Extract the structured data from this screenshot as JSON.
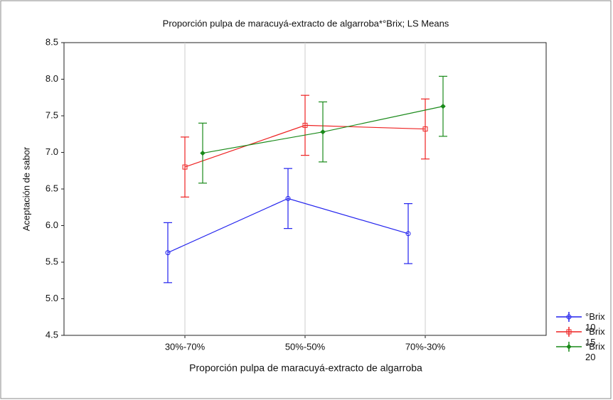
{
  "chart_data": {
    "type": "line",
    "title": "Proporción pulpa de maracuyá-extracto de algarroba*°Brix; LS Means",
    "x_label": "Proporción pulpa de maracuyá-extracto de algarroba",
    "y_label": "Aceptación de sabor",
    "categories": [
      "30%-70%",
      "50%-50%",
      "70%-30%"
    ],
    "ylim": [
      4.5,
      8.5
    ],
    "yticks": [
      4.5,
      {
        "value": 5,
        "label": "5.0"
      },
      5.5,
      {
        "value": 6,
        "label": "6.0"
      },
      6.5,
      {
        "value": 7,
        "label": "7.0"
      },
      7.5,
      {
        "value": 8,
        "label": "8.0"
      },
      8.5
    ],
    "grid": true,
    "legend": "lower right",
    "series": [
      {
        "name": "°Brix 10",
        "color": "#2222ee",
        "marker": "circle",
        "values": [
          5.63,
          6.37,
          5.89
        ],
        "errors": [
          0.41,
          0.41,
          0.41
        ]
      },
      {
        "name": "°Brix 15",
        "color": "#ee2222",
        "marker": "square",
        "values": [
          6.8,
          7.37,
          7.32
        ],
        "errors": [
          0.41,
          0.41,
          0.41
        ]
      },
      {
        "name": "°Brix 20",
        "color": "#1a8a1a",
        "marker": "diamond",
        "values": [
          6.99,
          7.28,
          7.63
        ],
        "errors": [
          0.41,
          0.41,
          0.41
        ]
      }
    ]
  }
}
